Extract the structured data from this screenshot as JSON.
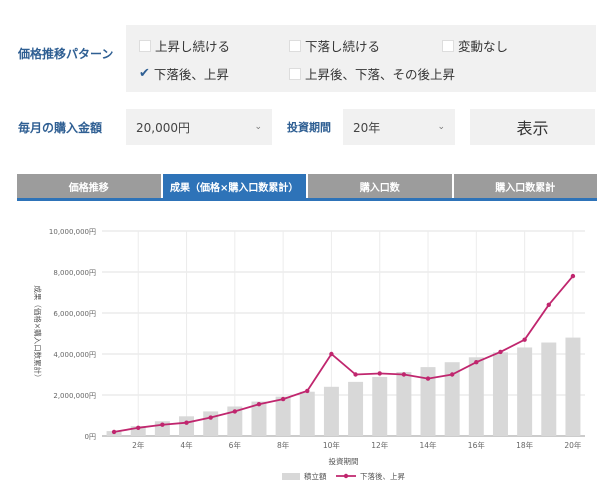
{
  "pattern": {
    "label": "価格推移パターン",
    "options": [
      {
        "label": "上昇し続ける",
        "checked": false
      },
      {
        "label": "下落し続ける",
        "checked": false
      },
      {
        "label": "変動なし",
        "checked": false
      },
      {
        "label": "下落後、上昇",
        "checked": true
      },
      {
        "label": "上昇後、下落、その後上昇",
        "checked": false
      }
    ]
  },
  "purchase": {
    "label": "毎月の購入金額",
    "value": "20,000円"
  },
  "period": {
    "label": "投資期間",
    "value": "20年"
  },
  "show_button": "表示",
  "tabs": [
    {
      "label": "価格推移",
      "active": false
    },
    {
      "label": "成果（価格×購入口数累計）",
      "active": true
    },
    {
      "label": "購入口数",
      "active": false
    },
    {
      "label": "購入口数累計",
      "active": false
    }
  ],
  "colors": {
    "accent": "#2e73b8",
    "line": "#c0266e",
    "bar": "#d8d8d8"
  },
  "chart_data": {
    "type": "bar+line",
    "xlabel": "投資期間",
    "ylabel": "成果（価格×購入口数累計）",
    "x_ticks": [
      "2年",
      "4年",
      "6年",
      "8年",
      "10年",
      "12年",
      "14年",
      "16年",
      "18年",
      "20年"
    ],
    "y_ticks": [
      "0円",
      "2,000,000円",
      "4,000,000円",
      "6,000,000円",
      "8,000,000円",
      "10,000,000円"
    ],
    "ylim": [
      0,
      10000000
    ],
    "x": [
      1,
      2,
      3,
      4,
      5,
      6,
      7,
      8,
      9,
      10,
      11,
      12,
      13,
      14,
      15,
      16,
      17,
      18,
      19,
      20
    ],
    "series": [
      {
        "name": "積立額",
        "type": "bar",
        "values": [
          240000,
          480000,
          720000,
          960000,
          1200000,
          1440000,
          1680000,
          1920000,
          2160000,
          2400000,
          2640000,
          2880000,
          3120000,
          3360000,
          3600000,
          3840000,
          4080000,
          4320000,
          4560000,
          4800000
        ]
      },
      {
        "name": "下落後、上昇",
        "type": "line",
        "values": [
          200000,
          400000,
          550000,
          650000,
          900000,
          1200000,
          1550000,
          1800000,
          2200000,
          4000000,
          3000000,
          3050000,
          3000000,
          2800000,
          3000000,
          3600000,
          4100000,
          4700000,
          6400000,
          7800000
        ]
      }
    ],
    "legend": "bottom"
  }
}
